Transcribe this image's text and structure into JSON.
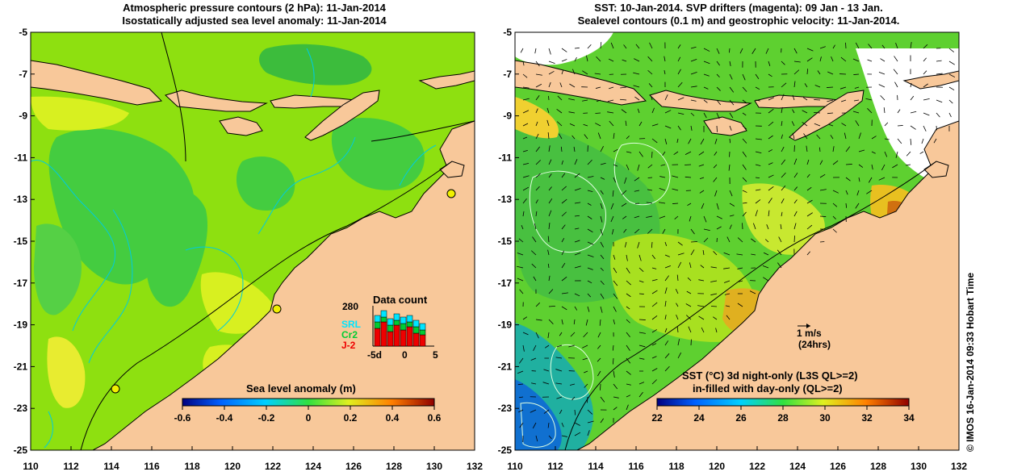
{
  "left_panel": {
    "title_line1": "Atmospheric pressure contours (2 hPa): 11-Jan-2014",
    "title_line2": "Isostatically adjusted sea level anomaly: 11-Jan-2014",
    "colorbar_label": "Sea level anomaly (m)",
    "colorbar_ticks": [
      "-0.6",
      "-0.4",
      "-0.2",
      "0",
      "0.2",
      "0.4",
      "0.6"
    ],
    "inset": {
      "title": "Data count",
      "max_label": "280",
      "x_labels": [
        "-5d",
        "0",
        "5"
      ],
      "missions": [
        {
          "name": "SRL",
          "color": "#00e5ff"
        },
        {
          "name": "Cr2",
          "color": "#00cc33"
        },
        {
          "name": "J-2",
          "color": "#ee0000"
        }
      ]
    }
  },
  "right_panel": {
    "title_line1": "SST: 10-Jan-2014. SVP drifters (magenta): 09 Jan - 13 Jan.",
    "title_line2": "Sealevel contours (0.1 m) and geostrophic velocity: 11-Jan-2014.",
    "colorbar_label_line1": "SST (°C)  3d night-only (L3S QL>=2)",
    "colorbar_label_line2": "in-filled with day-only (QL>=2)",
    "colorbar_ticks": [
      "22",
      "24",
      "26",
      "28",
      "30",
      "32",
      "34"
    ],
    "scale_label": "1 m/s",
    "scale_sub": "(24hrs)"
  },
  "axes": {
    "x_ticks": [
      "110",
      "112",
      "114",
      "116",
      "118",
      "120",
      "122",
      "124",
      "126",
      "128",
      "130",
      "132"
    ],
    "y_ticks": [
      "-5",
      "-7",
      "-9",
      "-11",
      "-13",
      "-15",
      "-17",
      "-19",
      "-21",
      "-23",
      "-25"
    ]
  },
  "credit": "© IMOS 16-Jan-2014 09:33 Hobart Time",
  "colors": {
    "land": "#f8c89a",
    "sla_main": "#7fe010",
    "sla_deep": "#3cc83c",
    "sla_pos": "#d8f020",
    "sst_main": "#5ed030",
    "sst_warm": "#f0b020",
    "sst_cool": "#10a0d0",
    "coast": "#000000",
    "bathy": "#00ccdd"
  }
}
